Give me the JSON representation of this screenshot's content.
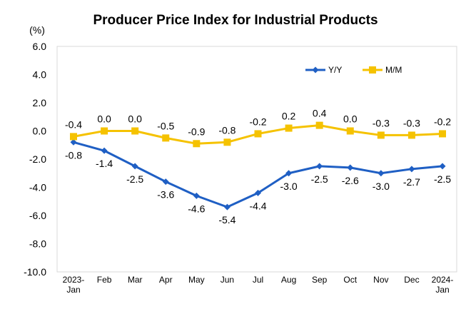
{
  "chart_data": {
    "type": "line",
    "title": "Producer Price Index for Industrial Products",
    "ylabel": "(%)",
    "xlabel": "",
    "ylim": [
      -10.0,
      6.0
    ],
    "yticks": [
      "6.0",
      "4.0",
      "2.0",
      "0.0",
      "-2.0",
      "-4.0",
      "-6.0",
      "-8.0",
      "-10.0"
    ],
    "ytick_values": [
      6,
      4,
      2,
      0,
      -2,
      -4,
      -6,
      -8,
      -10
    ],
    "categories": [
      [
        "2023-",
        "Jan"
      ],
      [
        "Feb"
      ],
      [
        "Mar"
      ],
      [
        "Apr"
      ],
      [
        "May"
      ],
      [
        "Jun"
      ],
      [
        "Jul"
      ],
      [
        "Aug"
      ],
      [
        "Sep"
      ],
      [
        "Oct"
      ],
      [
        "Nov"
      ],
      [
        "Dec"
      ],
      [
        "2024-",
        "Jan"
      ]
    ],
    "grid": false,
    "legend_position": "top-right",
    "series": [
      {
        "name": "Y/Y",
        "color": "#1f5fc4",
        "marker": "diamond",
        "values": [
          -0.8,
          -1.4,
          -2.5,
          -3.6,
          -4.6,
          -5.4,
          -4.4,
          -3.0,
          -2.5,
          -2.6,
          -3.0,
          -2.7,
          -2.5
        ],
        "labels": [
          "-0.8",
          "-1.4",
          "-2.5",
          "-3.6",
          "-4.6",
          "-5.4",
          "-4.4",
          "-3.0",
          "-2.5",
          "-2.6",
          "-3.0",
          "-2.7",
          "-2.5"
        ]
      },
      {
        "name": "M/M",
        "color": "#f5c200",
        "marker": "square",
        "values": [
          -0.4,
          0.0,
          0.0,
          -0.5,
          -0.9,
          -0.8,
          -0.2,
          0.2,
          0.4,
          0.0,
          -0.3,
          -0.3,
          -0.2
        ],
        "labels": [
          "-0.4",
          "0.0",
          "0.0",
          "-0.5",
          "-0.9",
          "-0.8",
          "-0.2",
          "0.2",
          "0.4",
          "0.0",
          "-0.3",
          "-0.3",
          "-0.2"
        ]
      }
    ]
  }
}
